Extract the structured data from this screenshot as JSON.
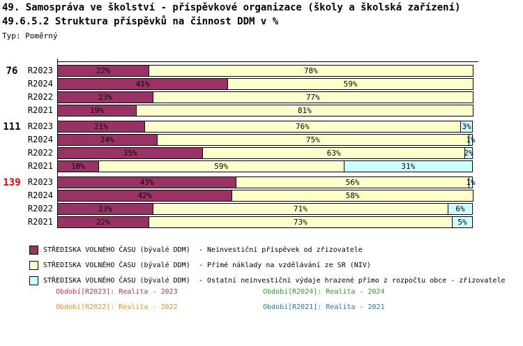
{
  "title": "49. Samospráva ve školství - příspěvkové organizace (školy a školská zařízení)",
  "subtitle": "49.6.5.2 Struktura příspěvků na činnost DDM v %",
  "type_label": "Typ: Poměrný",
  "chart_data": {
    "type": "bar",
    "orientation": "horizontal-stacked",
    "unit": "%",
    "xlim": [
      0,
      100
    ],
    "value_labels": "shown as N% inside segments, zero values omitted",
    "series": [
      {
        "name": "STŘEDISKA VOLNÉHO ČASU (bývalé DDM) - Neinvestiční příspěvek od zřizovatele",
        "color": "#993366"
      },
      {
        "name": "STŘEDISKA VOLNÉHO ČASU (bývalé DDM) - Přímé náklady na vzdělávání ze SR (NIV)",
        "color": "#FFFFCC"
      },
      {
        "name": "STŘEDISKA VOLNÉHO ČASU (bývalé DDM) - Ostatní neinvestiční výdaje hrazené přímo z rozpočtu obce - zřizovatele",
        "color": "#CCFFFF"
      }
    ],
    "groups": [
      {
        "label": "76",
        "label_color": "#000000",
        "rows": [
          {
            "period": "R2023",
            "values": [
              22,
              78,
              0
            ]
          },
          {
            "period": "R2024",
            "values": [
              41,
              59,
              0
            ]
          },
          {
            "period": "R2022",
            "values": [
              23,
              77,
              0
            ]
          },
          {
            "period": "R2021",
            "values": [
              19,
              81,
              0
            ]
          }
        ]
      },
      {
        "label": "111",
        "label_color": "#000000",
        "rows": [
          {
            "period": "R2023",
            "values": [
              21,
              76,
              3
            ]
          },
          {
            "period": "R2024",
            "values": [
              24,
              75,
              1
            ]
          },
          {
            "period": "R2022",
            "values": [
              35,
              63,
              2
            ]
          },
          {
            "period": "R2021",
            "values": [
              10,
              59,
              31
            ]
          }
        ]
      },
      {
        "label": "139",
        "label_color": "#EE0000",
        "rows": [
          {
            "period": "R2023",
            "values": [
              43,
              56,
              1
            ]
          },
          {
            "period": "R2024",
            "values": [
              42,
              58,
              0
            ]
          },
          {
            "period": "R2022",
            "values": [
              23,
              71,
              6
            ]
          },
          {
            "period": "R2021",
            "values": [
              22,
              73,
              5
            ]
          }
        ]
      }
    ]
  },
  "legend": {
    "items": [
      {
        "swatch_color": "#993366",
        "name": "STŘEDISKA VOLNÉHO ČASU (bývalé DDM)",
        "desc": "- Neinvestiční příspěvek od zřizovatele"
      },
      {
        "swatch_color": "#FFFFCC",
        "name": "STŘEDISKA VOLNÉHO ČASU (bývalé DDM)",
        "desc": "- Přímé náklady na vzdělávání ze SR (NIV)"
      },
      {
        "swatch_color": "#CCFFFF",
        "name": "STŘEDISKA VOLNÉHO ČASU (bývalé DDM)",
        "desc": "- Ostatní neinvestiční výdaje hrazené přímo z rozpočtu obce - zřizovatele"
      }
    ]
  },
  "period_legend": {
    "items": [
      {
        "text": "Období[R2023]: Realita - 2023",
        "color": "#CC3333"
      },
      {
        "text": "Období[R2024]: Realita - 2024",
        "color": "#2CA02C"
      },
      {
        "text": "Období[R2022]: Realita - 2022",
        "color": "#FF8C1E"
      },
      {
        "text": "Období[R2021]: Realita - 2021",
        "color": "#1F77B4"
      }
    ]
  }
}
